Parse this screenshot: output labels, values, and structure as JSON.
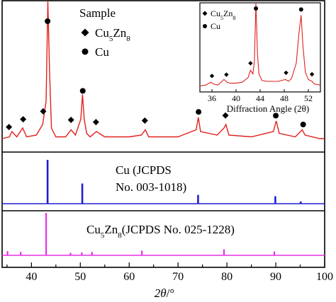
{
  "chart_data": [
    {
      "type": "line",
      "panel": "sample",
      "legend_title": "Sample",
      "legend": [
        {
          "marker": "diamond",
          "label_main": "Cu",
          "label_sub1": "5",
          "label_mid": "Zn",
          "label_sub2": "8"
        },
        {
          "marker": "circle",
          "label_main": "Cu"
        }
      ],
      "line_color": "#e0201c",
      "x": [
        34,
        35.5,
        36,
        37,
        38.2,
        39,
        41,
        42.3,
        43.0,
        43.35,
        43.7,
        44.1,
        45,
        47,
        48.1,
        49,
        50.1,
        50.45,
        50.8,
        51.3,
        52,
        53.3,
        55,
        60,
        62.5,
        63.3,
        64,
        70,
        73.7,
        74.15,
        74.6,
        78,
        79.4,
        79.8,
        80.4,
        85,
        89.5,
        90.1,
        90.7,
        94,
        95.4,
        96,
        99,
        100
      ],
      "y": [
        4,
        5,
        8,
        5,
        10,
        5,
        6,
        12,
        25,
        100,
        42,
        10,
        5,
        5,
        9,
        6,
        15,
        29,
        15,
        7,
        5,
        8,
        5,
        5,
        6,
        9,
        5,
        5,
        9,
        16,
        8,
        6,
        10,
        12,
        6,
        5,
        8,
        14,
        7,
        5,
        9,
        6,
        4,
        4
      ],
      "diamond_peaks": [
        35.4,
        38.3,
        42.4,
        48.1,
        53.2,
        63.2,
        79.7
      ],
      "circle_peaks": [
        43.3,
        50.5,
        74.2,
        90.0,
        95.6
      ],
      "inset": {
        "legend": [
          {
            "marker": "diamond",
            "label_main": "Cu",
            "label_sub1": "5",
            "label_mid": "Zn",
            "label_sub2": "8"
          },
          {
            "marker": "circle",
            "label_main": "Cu"
          }
        ],
        "xlabel": "Diffraction Angle (2θ)",
        "xticks": [
          36,
          40,
          44,
          48,
          52
        ],
        "xlim": [
          34,
          54
        ],
        "x": [
          34,
          35,
          35.8,
          36.3,
          37,
          38,
          38.5,
          39,
          40,
          41,
          42,
          42.4,
          42.8,
          43.05,
          43.3,
          43.55,
          43.8,
          44.3,
          45,
          47,
          48.2,
          48.7,
          49.2,
          50,
          50.4,
          50.8,
          51.1,
          51.5,
          52,
          52.6,
          53,
          54
        ],
        "y": [
          5,
          6,
          9,
          7,
          6,
          12,
          9,
          8,
          8,
          9,
          14,
          22,
          18,
          32,
          100,
          40,
          18,
          11,
          10,
          10,
          12,
          10,
          13,
          30,
          60,
          82,
          48,
          20,
          12,
          10,
          7,
          6
        ],
        "diamond_peaks": [
          36.0,
          38.4,
          42.4,
          48.3,
          52.6
        ],
        "circle_peaks": [
          43.3,
          50.8
        ]
      }
    },
    {
      "type": "bar",
      "panel": "reference",
      "label_line1": "Cu (JCPDS",
      "label_line2": "No. 003-1018)",
      "color": "#1f1fd0",
      "x": [
        43.3,
        50.4,
        74.1,
        89.9,
        95.1
      ],
      "values": [
        100,
        46,
        20,
        17,
        5
      ]
    },
    {
      "type": "bar",
      "panel": "reference",
      "label_main": "Cu",
      "label_sub1": "5",
      "label_mid": "Zn",
      "label_sub2": "8",
      "label_rest": "(JCPDS  No. 025-1228)",
      "color": "#e632e6",
      "x": [
        35.1,
        37.8,
        43.0,
        48.0,
        50.3,
        52.4,
        62.6,
        79.4,
        89.7
      ],
      "values": [
        10,
        8,
        100,
        6,
        7,
        8,
        11,
        14,
        9
      ]
    }
  ],
  "x_axis": {
    "label_italic": "2θ",
    "label_rest": "/°",
    "xlim": [
      34,
      100
    ],
    "ticks": [
      40,
      50,
      60,
      70,
      80,
      90,
      100
    ]
  }
}
